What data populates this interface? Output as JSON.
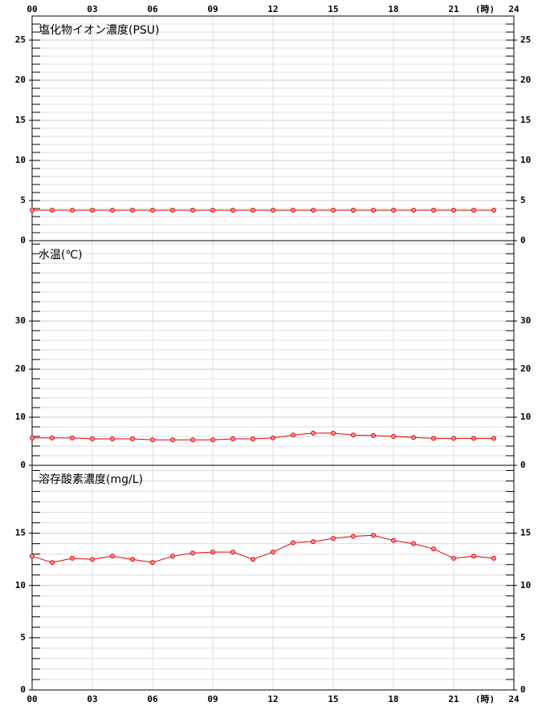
{
  "x_axis": {
    "xlim": [
      0,
      24
    ],
    "xticks": [
      {
        "value": 0,
        "label": "00"
      },
      {
        "value": 3,
        "label": "03"
      },
      {
        "value": 6,
        "label": "06"
      },
      {
        "value": 9,
        "label": "09"
      },
      {
        "value": 12,
        "label": "12"
      },
      {
        "value": 15,
        "label": "15"
      },
      {
        "value": 18,
        "label": "18"
      },
      {
        "value": 21,
        "label": "21"
      },
      {
        "value": 24,
        "label": "24"
      }
    ],
    "unit": "(時)"
  },
  "chart_data": [
    {
      "type": "line",
      "title": "塩化物イオン濃度(PSU)",
      "color": "#e00000",
      "x": [
        0,
        1,
        2,
        3,
        4,
        5,
        6,
        7,
        8,
        9,
        10,
        11,
        12,
        13,
        14,
        15,
        16,
        17,
        18,
        19,
        20,
        21,
        22,
        23
      ],
      "values": [
        3.8,
        3.8,
        3.8,
        3.8,
        3.8,
        3.8,
        3.8,
        3.8,
        3.8,
        3.8,
        3.8,
        3.8,
        3.8,
        3.8,
        3.8,
        3.8,
        3.8,
        3.8,
        3.8,
        3.8,
        3.8,
        3.8,
        3.8,
        3.8
      ],
      "ylim": [
        0,
        28
      ],
      "yticks": [
        0,
        5,
        10,
        15,
        20,
        25
      ],
      "minor_yticks": [
        1,
        2,
        3,
        4,
        6,
        7,
        8,
        9,
        11,
        12,
        13,
        14,
        16,
        17,
        18,
        19,
        21,
        22,
        23,
        24,
        26,
        27
      ]
    },
    {
      "type": "line",
      "title": "水温(℃)",
      "color": "#e00000",
      "x": [
        0,
        1,
        2,
        3,
        4,
        5,
        6,
        7,
        8,
        9,
        10,
        11,
        12,
        13,
        14,
        15,
        16,
        17,
        18,
        19,
        20,
        21,
        22,
        23
      ],
      "values": [
        5.7,
        5.7,
        5.7,
        5.5,
        5.5,
        5.5,
        5.3,
        5.3,
        5.3,
        5.3,
        5.5,
        5.5,
        5.7,
        6.3,
        6.7,
        6.7,
        6.3,
        6.2,
        6.0,
        5.8,
        5.6,
        5.6,
        5.6,
        5.6
      ],
      "ylim": [
        0,
        46.7
      ],
      "yticks": [
        0,
        10,
        20,
        30
      ],
      "minor_yticks": [
        2,
        4,
        6,
        8,
        12,
        14,
        16,
        18,
        22,
        24,
        26,
        28,
        32,
        34,
        36,
        38,
        40,
        42,
        44,
        46
      ]
    },
    {
      "type": "line",
      "title": "溶存酸素濃度(mg/L)",
      "color": "#e00000",
      "x": [
        0,
        1,
        2,
        3,
        4,
        5,
        6,
        7,
        8,
        9,
        10,
        11,
        12,
        13,
        14,
        15,
        16,
        17,
        18,
        19,
        20,
        21,
        22,
        23
      ],
      "values": [
        12.8,
        12.2,
        12.6,
        12.5,
        12.8,
        12.5,
        12.2,
        12.8,
        13.1,
        13.2,
        13.2,
        12.5,
        13.2,
        14.1,
        14.2,
        14.5,
        14.7,
        14.8,
        14.3,
        14.0,
        13.5,
        12.6,
        12.8,
        12.6
      ],
      "ylim": [
        0,
        21.5
      ],
      "yticks": [
        0,
        5,
        10,
        15
      ],
      "minor_yticks": [
        1,
        2,
        3,
        4,
        6,
        7,
        8,
        9,
        11,
        12,
        13,
        14,
        16,
        17,
        18,
        19,
        20,
        21
      ]
    }
  ]
}
